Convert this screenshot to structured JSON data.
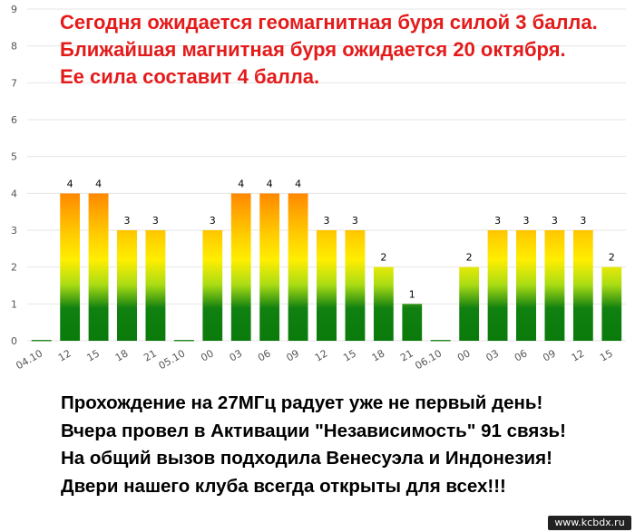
{
  "headline": {
    "lines": [
      "Сегодня ожидается геомагнитная буря силой 3 балла.",
      "Ближайшая магнитная буря ожидается 20 октября.",
      "Ее сила составит 4 балла."
    ]
  },
  "footer": {
    "lines": [
      "Прохождение на 27МГц радует уже не первый день!",
      "Вчера провел в Активации \"Независимость\" 91 связь!",
      "На общий вызов подходила Венесуэла и Индонезия!",
      "Двери нашего клуба всегда открыты для всех!!!"
    ]
  },
  "watermark": "www.kcbdx.ru",
  "chart_data": {
    "type": "bar",
    "ylim": [
      0,
      9
    ],
    "yticks": [
      0,
      1,
      2,
      3,
      4,
      5,
      6,
      7,
      8,
      9
    ],
    "grid": true,
    "categories": [
      "04.10",
      "12",
      "15",
      "18",
      "21",
      "05.10",
      "00",
      "03",
      "06",
      "09",
      "12",
      "15",
      "18",
      "21",
      "06.10",
      "00",
      "03",
      "06",
      "09",
      "12",
      "15"
    ],
    "values": [
      0,
      4,
      4,
      3,
      3,
      0,
      3,
      4,
      4,
      4,
      3,
      3,
      2,
      1,
      0,
      2,
      3,
      3,
      3,
      3,
      2
    ],
    "colors": {
      "green": "#0a7a0a",
      "yellow": "#ffee00",
      "orange": "#ff8c00",
      "zero_line": "#2e8b2e",
      "grid": "#e6e6e6"
    }
  }
}
